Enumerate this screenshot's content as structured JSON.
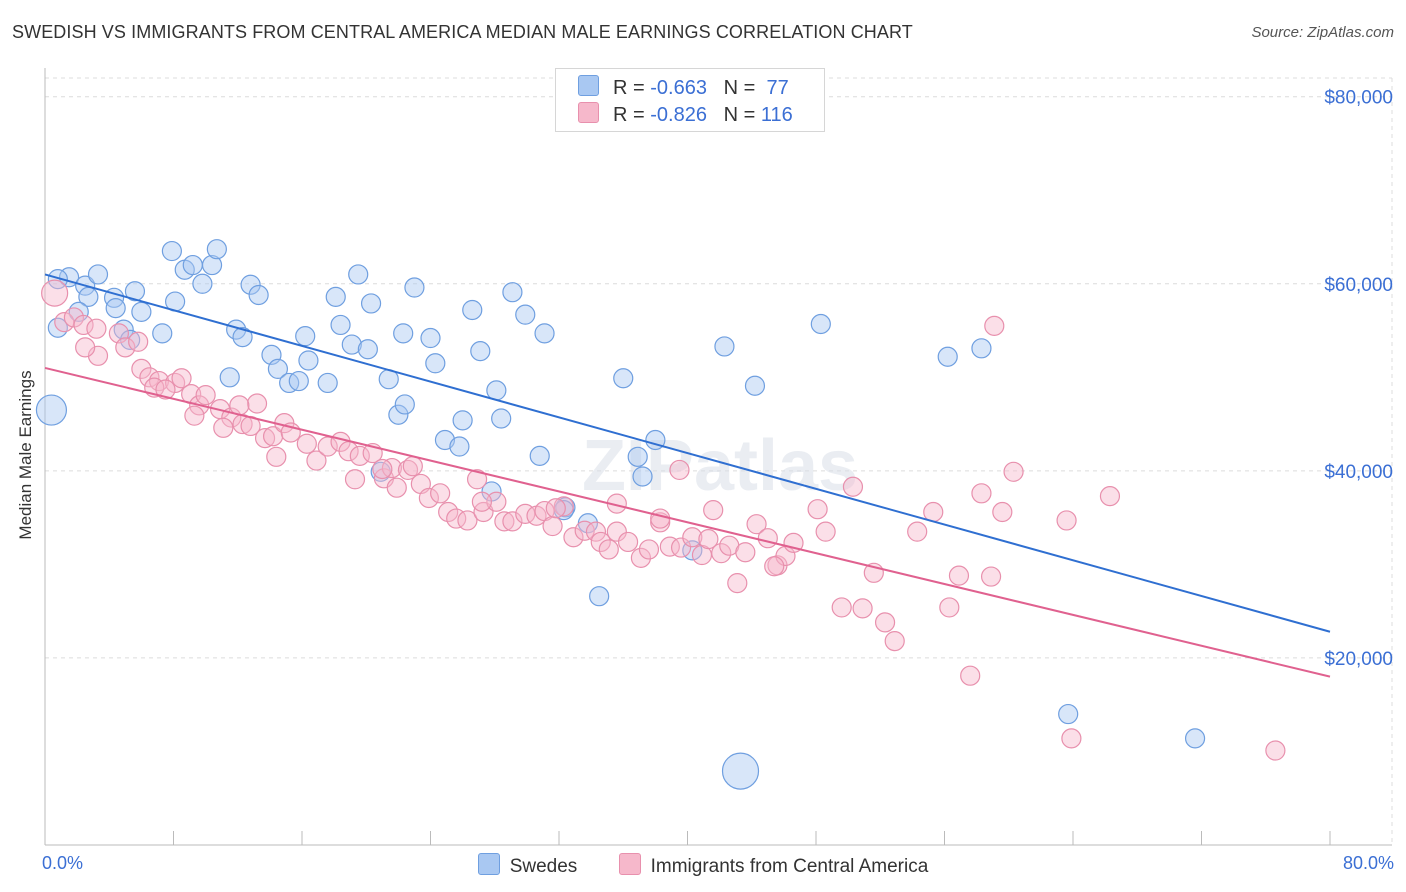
{
  "title": "SWEDISH VS IMMIGRANTS FROM CENTRAL AMERICA MEDIAN MALE EARNINGS CORRELATION CHART",
  "source": "Source: ZipAtlas.com",
  "watermark": "ZIPatlas",
  "legend_top": [
    {
      "r_label": "R =",
      "r_value": "-0.663",
      "n_label": "N =",
      "n_value": "77",
      "color": "#a9c8f2"
    },
    {
      "r_label": "R =",
      "r_value": "-0.826",
      "n_label": "N =",
      "n_value": "116",
      "color": "#f6b8cb"
    }
  ],
  "legend_bottom": [
    {
      "label": "Swedes",
      "color": "#a9c8f2"
    },
    {
      "label": "Immigrants from Central America",
      "color": "#f6b8cb"
    }
  ],
  "chart_data": {
    "type": "scatter",
    "title": "SWEDISH VS IMMIGRANTS FROM CENTRAL AMERICA MEDIAN MALE EARNINGS CORRELATION CHART",
    "xlabel": "",
    "ylabel": "Median Male Earnings",
    "xlim": [
      0,
      80
    ],
    "ylim": [
      0,
      82000
    ],
    "x_tick_labels": {
      "min": "0.0%",
      "max": "80.0%"
    },
    "y_ticks": [
      20000,
      40000,
      60000,
      80000
    ],
    "y_tick_labels": [
      "$20,000",
      "$40,000",
      "$60,000",
      "$80,000"
    ],
    "series": [
      {
        "name": "Swedes",
        "color": "#a9c8f2",
        "stroke": "#6f9fe0",
        "trend_color": "#2f6fd1",
        "trend": {
          "x0": 0,
          "y0": 61000,
          "x1": 80,
          "y1": 22800
        },
        "points": [
          [
            1.5,
            60700
          ],
          [
            0.8,
            60500
          ],
          [
            2.5,
            59800
          ],
          [
            3.3,
            61000
          ],
          [
            2.7,
            58600
          ],
          [
            4.3,
            58500
          ],
          [
            5.6,
            59200
          ],
          [
            4.4,
            57400
          ],
          [
            6.0,
            57000
          ],
          [
            7.9,
            63500
          ],
          [
            8.7,
            61500
          ],
          [
            9.2,
            62000
          ],
          [
            10.4,
            62000
          ],
          [
            10.7,
            63700
          ],
          [
            9.8,
            60000
          ],
          [
            8.1,
            58100
          ],
          [
            12.8,
            59900
          ],
          [
            13.3,
            58800
          ],
          [
            4.9,
            55100
          ],
          [
            5.3,
            54000
          ],
          [
            7.3,
            54700
          ],
          [
            11.9,
            55100
          ],
          [
            12.3,
            54300
          ],
          [
            16.2,
            54400
          ],
          [
            18.1,
            58600
          ],
          [
            18.4,
            55600
          ],
          [
            19.1,
            53500
          ],
          [
            20.1,
            53000
          ],
          [
            17.6,
            49400
          ],
          [
            16.4,
            51800
          ],
          [
            14.1,
            52400
          ],
          [
            14.5,
            50900
          ],
          [
            15.2,
            49400
          ],
          [
            15.8,
            49600
          ],
          [
            20.3,
            57900
          ],
          [
            19.5,
            61000
          ],
          [
            23.0,
            59600
          ],
          [
            24.0,
            54200
          ],
          [
            22.3,
            54700
          ],
          [
            21.4,
            49800
          ],
          [
            22.0,
            46000
          ],
          [
            22.4,
            47100
          ],
          [
            24.3,
            51500
          ],
          [
            26.6,
            57200
          ],
          [
            27.1,
            52800
          ],
          [
            28.1,
            48600
          ],
          [
            29.1,
            59100
          ],
          [
            29.9,
            56700
          ],
          [
            28.4,
            45600
          ],
          [
            26.0,
            45400
          ],
          [
            24.9,
            43300
          ],
          [
            25.8,
            42600
          ],
          [
            31.1,
            54700
          ],
          [
            30.8,
            41600
          ],
          [
            32.4,
            36100
          ],
          [
            33.8,
            34400
          ],
          [
            36.0,
            49900
          ],
          [
            37.2,
            39400
          ],
          [
            38.0,
            43300
          ],
          [
            36.9,
            41500
          ],
          [
            34.5,
            26600
          ],
          [
            40.3,
            31500
          ],
          [
            42.3,
            53300
          ],
          [
            44.2,
            49100
          ],
          [
            48.3,
            55700
          ],
          [
            56.2,
            52200
          ],
          [
            58.3,
            53100
          ],
          [
            63.7,
            14000
          ],
          [
            71.6,
            11400
          ],
          [
            43.3,
            7900
          ],
          [
            0.4,
            46500
          ],
          [
            0.8,
            55300
          ],
          [
            2.1,
            57000
          ],
          [
            11.5,
            50000
          ],
          [
            32.3,
            35800
          ],
          [
            27.8,
            37800
          ],
          [
            20.9,
            39900
          ]
        ],
        "sizes": {
          "69": 18,
          "70": 15
        }
      },
      {
        "name": "Immigrants from Central America",
        "color": "#f6b8cb",
        "stroke": "#e890ad",
        "trend_color": "#e0618f",
        "trend": {
          "x0": 0,
          "y0": 51000,
          "x1": 80,
          "y1": 18000
        },
        "points": [
          [
            0.6,
            59000
          ],
          [
            1.2,
            55900
          ],
          [
            1.8,
            56400
          ],
          [
            2.4,
            55600
          ],
          [
            3.2,
            55200
          ],
          [
            4.6,
            54700
          ],
          [
            5.0,
            53200
          ],
          [
            5.8,
            53800
          ],
          [
            3.3,
            52300
          ],
          [
            6.0,
            50900
          ],
          [
            6.5,
            50000
          ],
          [
            7.1,
            49600
          ],
          [
            6.8,
            48900
          ],
          [
            8.1,
            49400
          ],
          [
            8.5,
            49900
          ],
          [
            9.1,
            48200
          ],
          [
            7.5,
            48700
          ],
          [
            9.6,
            47000
          ],
          [
            10.0,
            48100
          ],
          [
            9.3,
            45900
          ],
          [
            10.9,
            46600
          ],
          [
            11.6,
            45700
          ],
          [
            12.3,
            45000
          ],
          [
            11.1,
            44600
          ],
          [
            12.8,
            44800
          ],
          [
            13.2,
            47200
          ],
          [
            13.7,
            43500
          ],
          [
            14.2,
            43700
          ],
          [
            14.9,
            45100
          ],
          [
            15.3,
            44100
          ],
          [
            16.3,
            42900
          ],
          [
            16.9,
            41100
          ],
          [
            17.6,
            42600
          ],
          [
            18.4,
            43100
          ],
          [
            18.9,
            42100
          ],
          [
            19.6,
            41600
          ],
          [
            20.4,
            41900
          ],
          [
            19.3,
            39100
          ],
          [
            21.1,
            39200
          ],
          [
            21.6,
            40300
          ],
          [
            22.6,
            40100
          ],
          [
            22.9,
            40500
          ],
          [
            21.9,
            38200
          ],
          [
            23.4,
            38600
          ],
          [
            23.9,
            37100
          ],
          [
            24.6,
            37600
          ],
          [
            25.1,
            35600
          ],
          [
            25.6,
            34900
          ],
          [
            26.3,
            34700
          ],
          [
            26.9,
            39100
          ],
          [
            27.3,
            35600
          ],
          [
            28.1,
            36700
          ],
          [
            28.6,
            34600
          ],
          [
            29.1,
            34600
          ],
          [
            29.9,
            35400
          ],
          [
            30.6,
            35200
          ],
          [
            31.1,
            35700
          ],
          [
            31.6,
            34100
          ],
          [
            32.3,
            36200
          ],
          [
            32.9,
            32900
          ],
          [
            33.6,
            33600
          ],
          [
            34.3,
            33500
          ],
          [
            34.6,
            32400
          ],
          [
            35.1,
            31600
          ],
          [
            35.6,
            33500
          ],
          [
            36.3,
            32400
          ],
          [
            37.1,
            30700
          ],
          [
            37.6,
            31600
          ],
          [
            38.3,
            34500
          ],
          [
            38.9,
            31900
          ],
          [
            39.6,
            31800
          ],
          [
            40.3,
            32900
          ],
          [
            40.9,
            31000
          ],
          [
            41.6,
            35800
          ],
          [
            42.1,
            31200
          ],
          [
            42.6,
            32000
          ],
          [
            43.1,
            28000
          ],
          [
            43.6,
            31300
          ],
          [
            44.3,
            34300
          ],
          [
            45.0,
            32800
          ],
          [
            45.6,
            29900
          ],
          [
            46.1,
            30900
          ],
          [
            46.6,
            32300
          ],
          [
            48.1,
            35900
          ],
          [
            48.6,
            33500
          ],
          [
            49.6,
            25400
          ],
          [
            50.3,
            38300
          ],
          [
            50.9,
            25300
          ],
          [
            51.6,
            29100
          ],
          [
            52.3,
            23800
          ],
          [
            52.9,
            21800
          ],
          [
            54.3,
            33500
          ],
          [
            55.3,
            35600
          ],
          [
            56.3,
            25400
          ],
          [
            56.9,
            28800
          ],
          [
            58.3,
            37600
          ],
          [
            59.6,
            35600
          ],
          [
            60.3,
            39900
          ],
          [
            58.9,
            28700
          ],
          [
            59.1,
            55500
          ],
          [
            63.6,
            34700
          ],
          [
            66.3,
            37300
          ],
          [
            63.9,
            11400
          ],
          [
            76.6,
            10100
          ],
          [
            57.6,
            18100
          ],
          [
            35.6,
            36500
          ],
          [
            38.3,
            34900
          ],
          [
            39.5,
            40100
          ],
          [
            14.4,
            41500
          ],
          [
            21.0,
            40200
          ],
          [
            12.1,
            47000
          ],
          [
            2.5,
            53200
          ],
          [
            27.2,
            36700
          ],
          [
            31.8,
            36000
          ],
          [
            45.4,
            29800
          ],
          [
            41.3,
            32700
          ]
        ],
        "sizes": {
          "0": 13
        }
      }
    ]
  }
}
